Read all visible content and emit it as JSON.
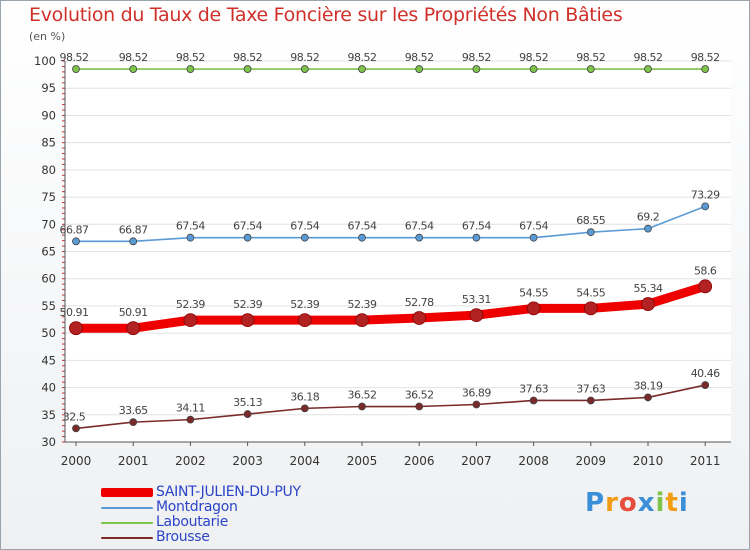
{
  "chart_data": {
    "type": "line",
    "title": "Evolution du Taux de Taxe Foncière sur les Propriétés Non Bâties",
    "subtitle": "(en %)",
    "xlabel": "",
    "ylabel": "",
    "ylim": [
      30,
      100
    ],
    "yticks": [
      "30",
      "35",
      "40",
      "45",
      "50",
      "55",
      "60",
      "65",
      "70",
      "75",
      "80",
      "85",
      "90",
      "95",
      "100"
    ],
    "categories": [
      "2000",
      "2001",
      "2002",
      "2003",
      "2004",
      "2005",
      "2006",
      "2007",
      "2008",
      "2009",
      "2010",
      "2011"
    ],
    "series": [
      {
        "name": "SAINT-JULIEN-DU-PUY",
        "color": "#ee0000",
        "values": [
          50.91,
          50.91,
          52.39,
          52.39,
          52.39,
          52.39,
          52.78,
          53.31,
          54.55,
          54.55,
          55.34,
          58.6
        ],
        "labels": [
          "50.91",
          "50.91",
          "52.39",
          "52.39",
          "52.39",
          "52.39",
          "52.78",
          "53.31",
          "54.55",
          "54.55",
          "55.34",
          "58.6"
        ]
      },
      {
        "name": "Montdragon",
        "color": "#5b9bd5",
        "values": [
          66.87,
          66.87,
          67.54,
          67.54,
          67.54,
          67.54,
          67.54,
          67.54,
          67.54,
          68.55,
          69.2,
          73.29
        ],
        "labels": [
          "66.87",
          "66.87",
          "67.54",
          "67.54",
          "67.54",
          "67.54",
          "67.54",
          "67.54",
          "67.54",
          "68.55",
          "69.2",
          "73.29"
        ]
      },
      {
        "name": "Laboutarie",
        "color": "#7dc44a",
        "values": [
          98.52,
          98.52,
          98.52,
          98.52,
          98.52,
          98.52,
          98.52,
          98.52,
          98.52,
          98.52,
          98.52,
          98.52
        ],
        "labels": [
          "98.52",
          "98.52",
          "98.52",
          "98.52",
          "98.52",
          "98.52",
          "98.52",
          "98.52",
          "98.52",
          "98.52",
          "98.52",
          "98.52"
        ]
      },
      {
        "name": "Brousse",
        "color": "#7a2a2a",
        "values": [
          32.5,
          33.65,
          34.11,
          35.13,
          36.18,
          36.52,
          36.52,
          36.89,
          37.63,
          37.63,
          38.19,
          40.46
        ],
        "labels": [
          "32.5",
          "33.65",
          "34.11",
          "35.13",
          "36.18",
          "36.52",
          "36.52",
          "36.89",
          "37.63",
          "37.63",
          "38.19",
          "40.46"
        ]
      }
    ],
    "legend": "bottom-left"
  },
  "brand": {
    "text": "Proxiti",
    "letters": [
      "P",
      "r",
      "o",
      "x",
      "i",
      "t",
      "i"
    ],
    "colors": [
      "#3a8fd8",
      "#f39c12",
      "#e74c3c",
      "#3a8fd8",
      "#7dc44a",
      "#f39c12",
      "#3a8fd8"
    ]
  }
}
